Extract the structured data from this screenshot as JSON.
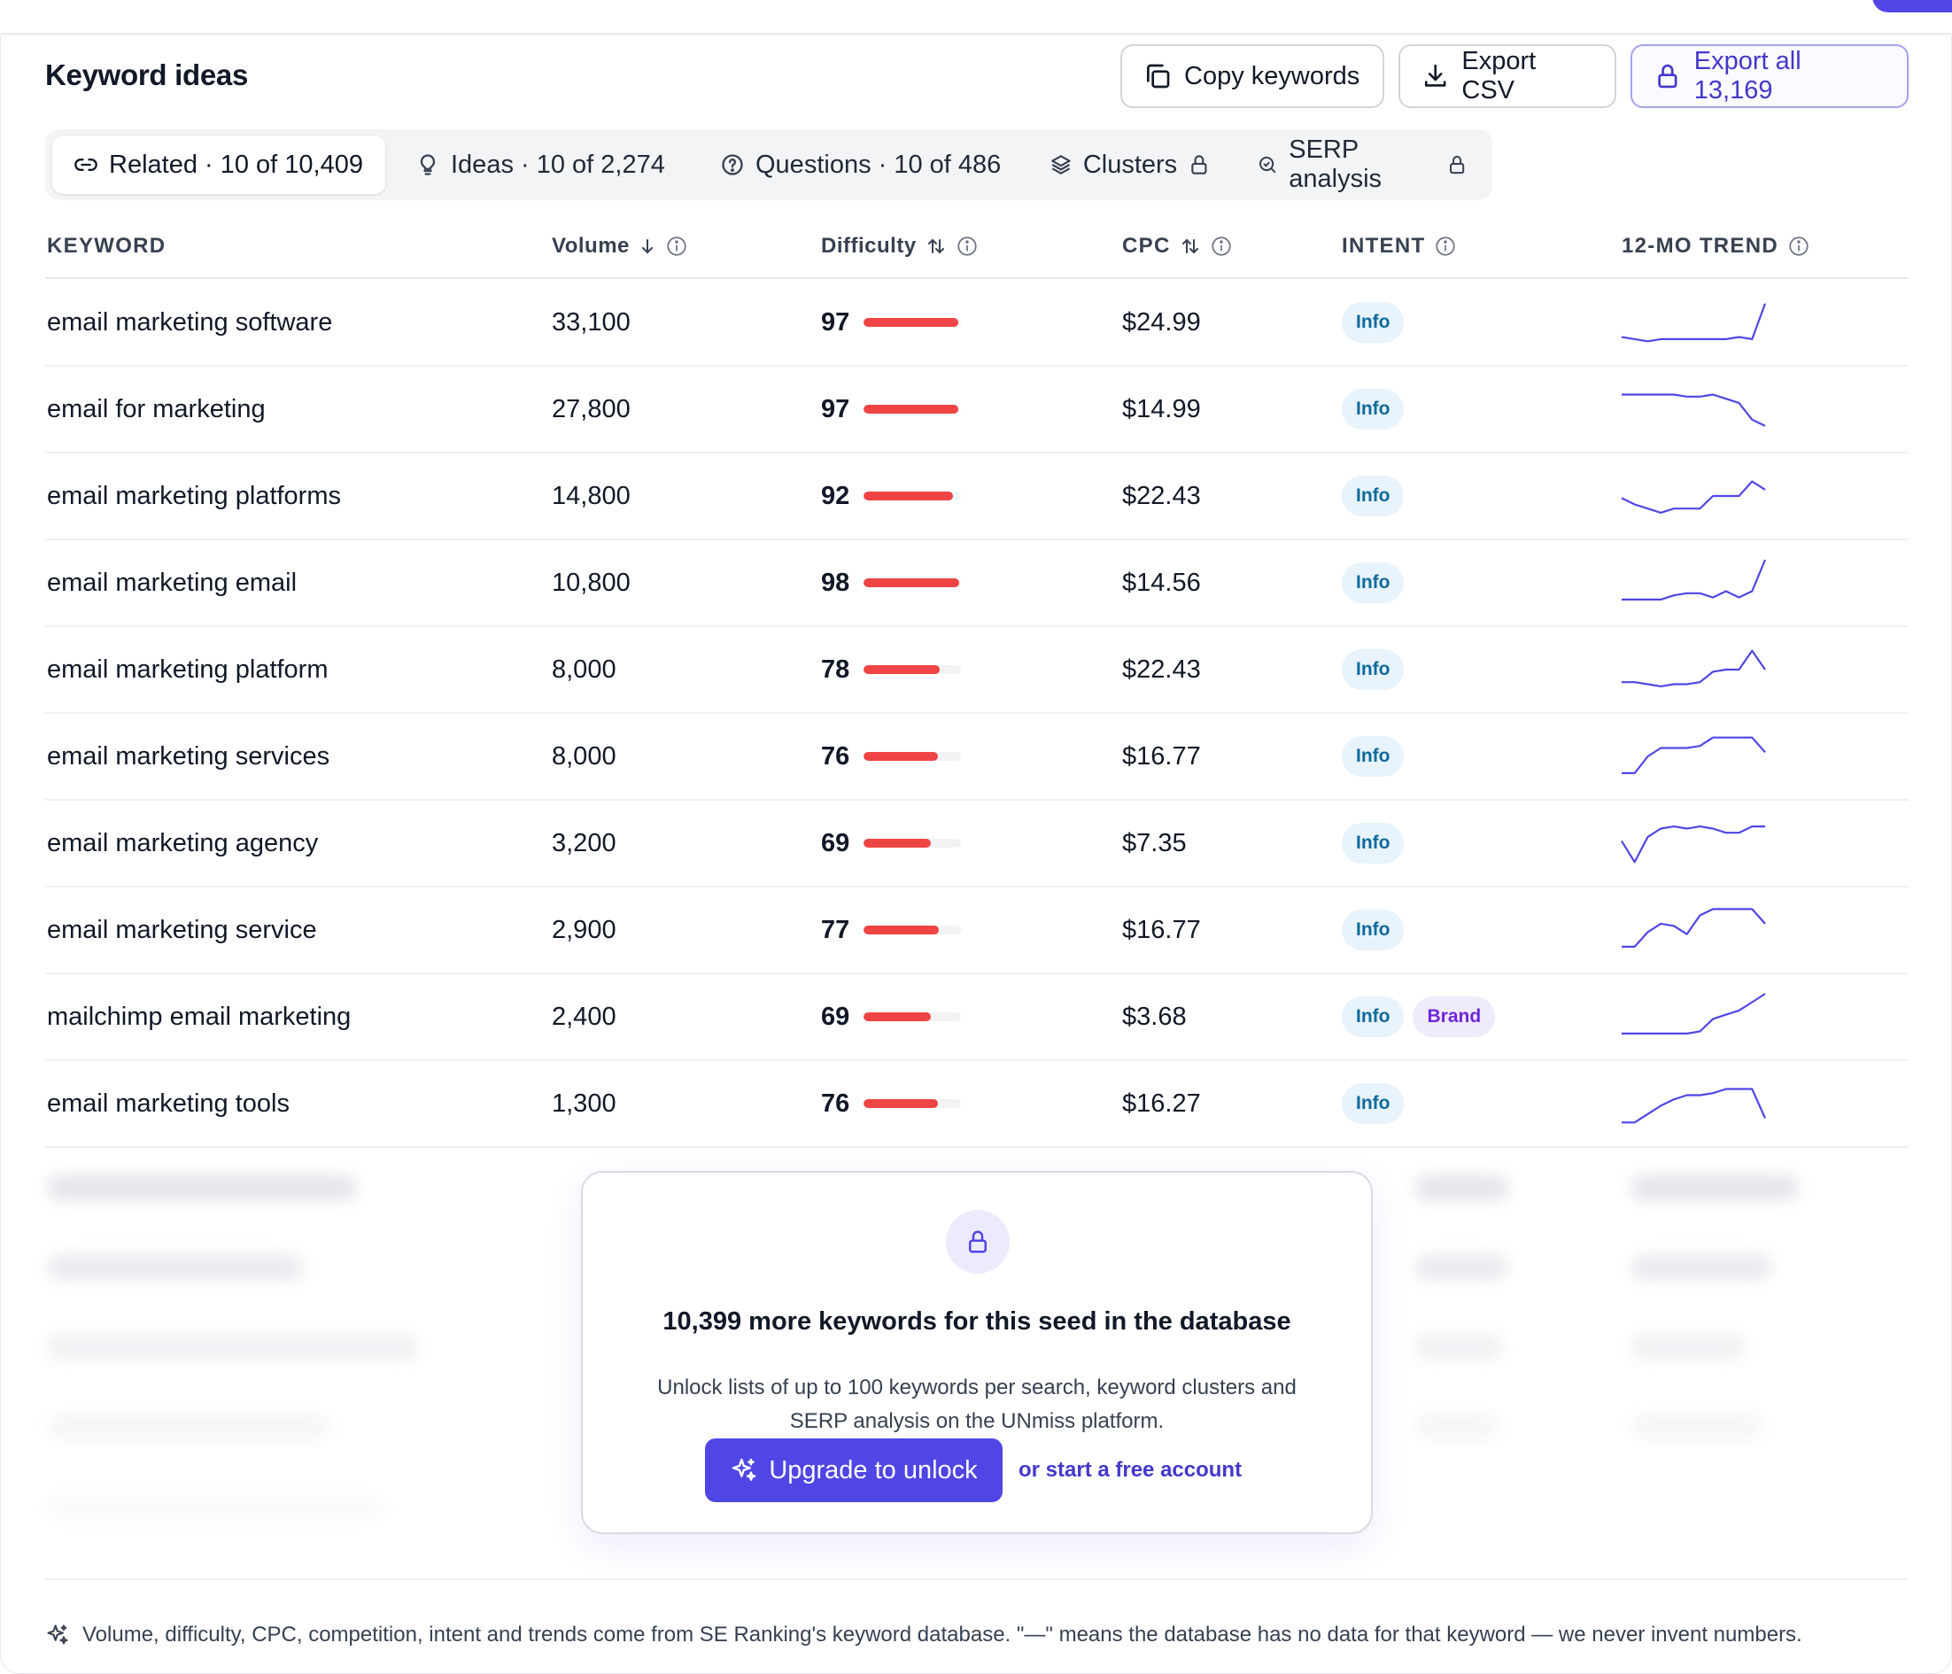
{
  "header": {
    "title": "Keyword ideas",
    "copy_label": "Copy keywords",
    "export_label": "Export CSV",
    "export_all_label": "Export all 13,169"
  },
  "tabs": [
    {
      "label": "Related · 10 of 10,409",
      "icon": "link-icon",
      "active": true
    },
    {
      "label": "Ideas · 10 of 2,274",
      "icon": "lightbulb-icon"
    },
    {
      "label": "Questions · 10 of 486",
      "icon": "question-icon"
    },
    {
      "label": "Clusters",
      "icon": "layers-icon",
      "locked": true
    },
    {
      "label": "SERP analysis",
      "icon": "search-icon",
      "locked": true
    }
  ],
  "columns": {
    "keyword": "KEYWORD",
    "volume": "Volume",
    "difficulty": "Difficulty",
    "cpc": "CPC",
    "intent": "INTENT",
    "trend": "12-MO TREND"
  },
  "rows": [
    {
      "keyword": "email marketing software",
      "volume": "33,100",
      "difficulty": "97",
      "cpc": "$24.99",
      "intent": [
        "Info"
      ],
      "trend": [
        4,
        3,
        2,
        3,
        3,
        3,
        3,
        3,
        3,
        4,
        3,
        20
      ]
    },
    {
      "keyword": "email for marketing",
      "volume": "27,800",
      "difficulty": "97",
      "cpc": "$14.99",
      "intent": [
        "Info"
      ],
      "trend": [
        18,
        18,
        18,
        18,
        18,
        17,
        17,
        18,
        16,
        14,
        6,
        3
      ]
    },
    {
      "keyword": "email marketing platforms",
      "volume": "14,800",
      "difficulty": "92",
      "cpc": "$22.43",
      "intent": [
        "Info"
      ],
      "trend": [
        10,
        7,
        5,
        3,
        5,
        5,
        5,
        11,
        11,
        11,
        18,
        14
      ]
    },
    {
      "keyword": "email marketing email",
      "volume": "10,800",
      "difficulty": "98",
      "cpc": "$14.56",
      "intent": [
        "Info"
      ],
      "trend": [
        3,
        3,
        3,
        3,
        5,
        6,
        6,
        4,
        7,
        4,
        7,
        22
      ]
    },
    {
      "keyword": "email marketing platform",
      "volume": "8,000",
      "difficulty": "78",
      "cpc": "$22.43",
      "intent": [
        "Info"
      ],
      "trend": [
        5,
        5,
        4,
        3,
        4,
        4,
        5,
        10,
        11,
        11,
        20,
        11
      ]
    },
    {
      "keyword": "email marketing services",
      "volume": "8,000",
      "difficulty": "76",
      "cpc": "$16.77",
      "intent": [
        "Info"
      ],
      "trend": [
        3,
        3,
        11,
        15,
        15,
        15,
        16,
        20,
        20,
        20,
        20,
        13
      ]
    },
    {
      "keyword": "email marketing agency",
      "volume": "3,200",
      "difficulty": "69",
      "cpc": "$7.35",
      "intent": [
        "Info"
      ],
      "trend": [
        12,
        2,
        14,
        18,
        19,
        18,
        19,
        18,
        16,
        16,
        19,
        19
      ]
    },
    {
      "keyword": "email marketing service",
      "volume": "2,900",
      "difficulty": "77",
      "cpc": "$16.77",
      "intent": [
        "Info"
      ],
      "trend": [
        3,
        3,
        10,
        14,
        13,
        9,
        18,
        21,
        21,
        21,
        21,
        14
      ]
    },
    {
      "keyword": "mailchimp email marketing",
      "volume": "2,400",
      "difficulty": "69",
      "cpc": "$3.68",
      "intent": [
        "Info",
        "Brand"
      ],
      "trend": [
        3,
        3,
        3,
        3,
        3,
        3,
        4,
        10,
        12,
        14,
        18,
        22
      ]
    },
    {
      "keyword": "email marketing tools",
      "volume": "1,300",
      "difficulty": "76",
      "cpc": "$16.27",
      "intent": [
        "Info"
      ],
      "trend": [
        2,
        2,
        6,
        10,
        13,
        15,
        15,
        16,
        18,
        18,
        18,
        4
      ]
    }
  ],
  "locked": {
    "title": "10,399 more keywords for this seed in the database",
    "desc_line1": "Unlock lists of up to 100 keywords per search, keyword clusters and",
    "desc_line2": "SERP analysis on the UNmiss platform.",
    "upgrade_label": "Upgrade to unlock",
    "free_label": "or start a free account"
  },
  "footnote": "Volume, difficulty, CPC, competition, intent and trends come from SE Ranking's keyword database. \"—\" means the database has no data for that keyword — we never invent numbers.",
  "colors": {
    "accent": "#4f46e5",
    "difficulty_bar": "#ef4444",
    "trend_line": "#4f46e5",
    "info_badge": "#0e6a9c",
    "brand_badge": "#6d28d9"
  }
}
